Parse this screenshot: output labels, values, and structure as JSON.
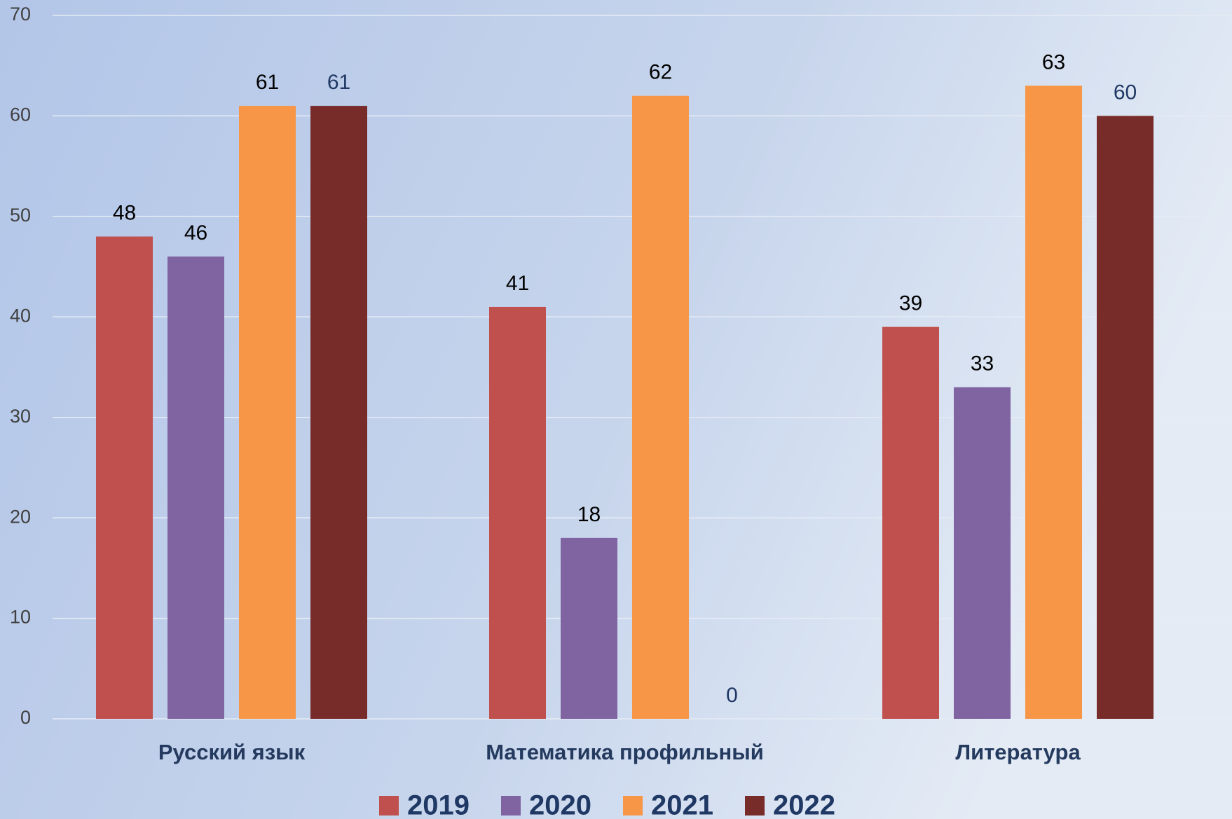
{
  "chart_data": {
    "type": "bar",
    "categories": [
      "Русский язык",
      "Математика профильный",
      "Литература"
    ],
    "series": [
      {
        "name": "2019",
        "color": "#c0504d",
        "label_color": "#000000",
        "values": [
          48,
          41,
          39
        ]
      },
      {
        "name": "2020",
        "color": "#8064a2",
        "label_color": "#000000",
        "values": [
          46,
          18,
          33
        ]
      },
      {
        "name": "2021",
        "color": "#f79646",
        "label_color": "#000000",
        "values": [
          61,
          62,
          63
        ]
      },
      {
        "name": "2022",
        "color": "#772c2a",
        "label_color": "#1f3864",
        "values": [
          61,
          0,
          60
        ]
      }
    ],
    "ylim": [
      0,
      70
    ],
    "yticks": [
      0,
      10,
      20,
      30,
      40,
      50,
      60,
      70
    ],
    "grid": true,
    "legend": "bottom"
  }
}
